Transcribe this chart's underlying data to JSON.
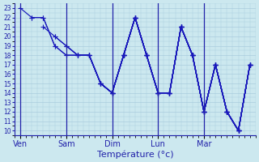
{
  "xlabel": "Température (°c)",
  "ylim": [
    10,
    23
  ],
  "yticks": [
    10,
    11,
    12,
    13,
    14,
    15,
    16,
    17,
    18,
    19,
    20,
    21,
    22,
    23
  ],
  "day_labels": [
    "Ven",
    "Sam",
    "Dim",
    "Lun",
    "Mar"
  ],
  "day_positions": [
    0,
    4,
    8,
    12,
    16
  ],
  "background_color": "#cce8ef",
  "grid_color": "#aaccdd",
  "line_color": "#1818bb",
  "marker": "+",
  "markersize": 4.0,
  "linewidth": 0.85,
  "series_x": [
    [
      0,
      1,
      2,
      3,
      4,
      5,
      6,
      7,
      8,
      9,
      10,
      11,
      12,
      13,
      14,
      15,
      16,
      17,
      18,
      19,
      20
    ],
    [
      1,
      2,
      3,
      4,
      5,
      6,
      7,
      8,
      9,
      10,
      11,
      12,
      13,
      14,
      15,
      16,
      17,
      18,
      19,
      20
    ],
    [
      2,
      3,
      4,
      5,
      6,
      7,
      8,
      9,
      10,
      11,
      12,
      13,
      14,
      15,
      16,
      17,
      18,
      19,
      20
    ],
    [
      3,
      4,
      5,
      6,
      7,
      8,
      9,
      10,
      11,
      12,
      13,
      14,
      15,
      16,
      17,
      18,
      19,
      20
    ],
    [
      4,
      5,
      6,
      7,
      8,
      9,
      10,
      11,
      12,
      13,
      14,
      15,
      16,
      17,
      18,
      19,
      20
    ],
    [
      5,
      6,
      7,
      8,
      9,
      10,
      11,
      12,
      13,
      14,
      15,
      16,
      17,
      18,
      19,
      20
    ],
    [
      6,
      7,
      8,
      9,
      10,
      11,
      12,
      13,
      14,
      15,
      16,
      17,
      18,
      19,
      20
    ],
    [
      7,
      8,
      9,
      10,
      11,
      12,
      13,
      14,
      15,
      16,
      17,
      18,
      19,
      20
    ],
    [
      8,
      9,
      10,
      11,
      12,
      13,
      14,
      15,
      16,
      17,
      18,
      19,
      20
    ],
    [
      9,
      10,
      11,
      12,
      13,
      14,
      15,
      16,
      17,
      18,
      19,
      20
    ]
  ],
  "series_y": [
    [
      23,
      22,
      22,
      19,
      18,
      18,
      18,
      15,
      14,
      18,
      22,
      18,
      14,
      14,
      21,
      18,
      12,
      17,
      12,
      10,
      17
    ],
    [
      22,
      22,
      19,
      18,
      18,
      18,
      15,
      14,
      18,
      22,
      18,
      14,
      14,
      21,
      18,
      12,
      17,
      12,
      10,
      17
    ],
    [
      21,
      20,
      19,
      18,
      18,
      15,
      14,
      18,
      22,
      18,
      14,
      14,
      21,
      18,
      12,
      17,
      12,
      10,
      17
    ],
    [
      20,
      19,
      18,
      18,
      15,
      14,
      18,
      22,
      18,
      14,
      14,
      21,
      18,
      12,
      17,
      12,
      10,
      17
    ],
    [
      19,
      18,
      18,
      15,
      14,
      18,
      22,
      18,
      14,
      14,
      21,
      18,
      12,
      17,
      12,
      10,
      17
    ],
    [
      18,
      18,
      15,
      14,
      18,
      22,
      18,
      14,
      14,
      21,
      18,
      12,
      17,
      12,
      10,
      17
    ],
    [
      18,
      15,
      14,
      18,
      22,
      18,
      14,
      14,
      21,
      18,
      12,
      17,
      12,
      10,
      17
    ],
    [
      15,
      14,
      18,
      22,
      18,
      14,
      14,
      21,
      18,
      12,
      17,
      12,
      10,
      17
    ],
    [
      14,
      18,
      22,
      18,
      14,
      14,
      21,
      18,
      12,
      17,
      12,
      10,
      17
    ],
    [
      18,
      22,
      18,
      14,
      14,
      21,
      18,
      12,
      17,
      12,
      10,
      17
    ]
  ]
}
